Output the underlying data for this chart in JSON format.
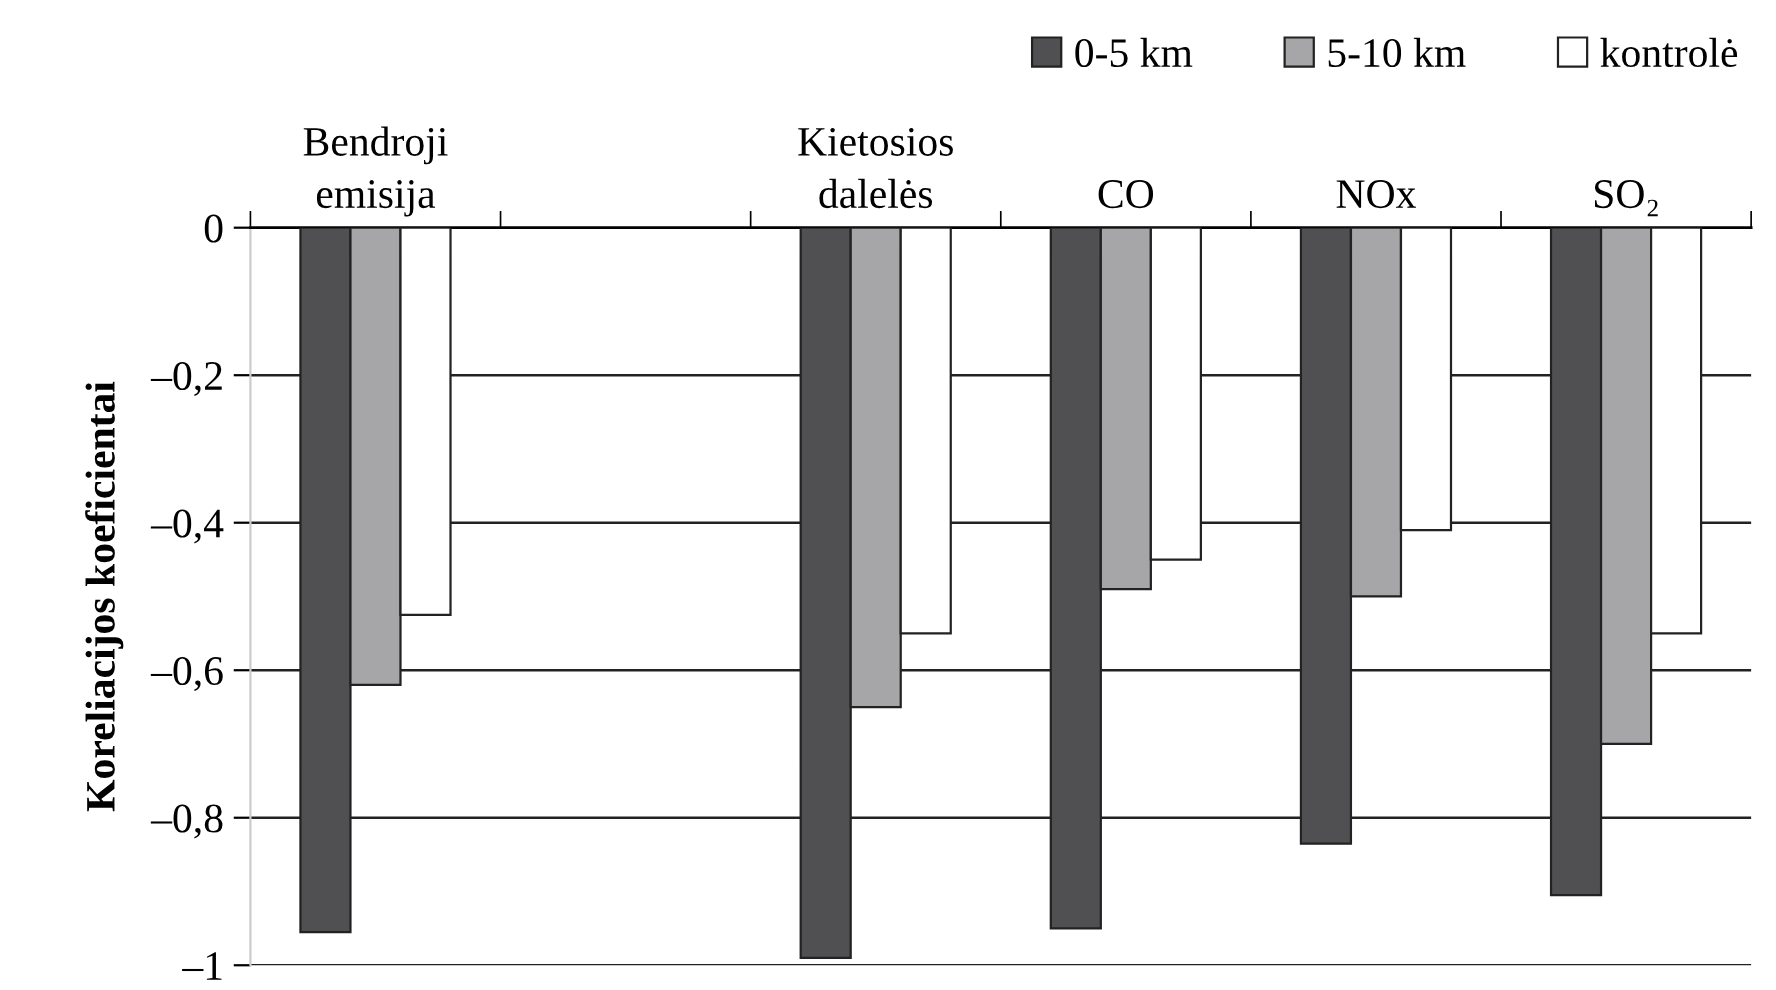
{
  "chart_data": {
    "type": "bar",
    "ylabel": "Koreliacijos koeficientai",
    "categories": [
      "Bendroji\nemisija",
      null,
      "Kietosios\ndalelės",
      "CO",
      "NOx",
      "SO₂"
    ],
    "series": [
      {
        "name": "0-5 km",
        "color": "#505052",
        "values": [
          -0.955,
          null,
          -0.99,
          -0.95,
          -0.835,
          -0.905
        ]
      },
      {
        "name": "5-10 km",
        "color": "#a6a6a8",
        "values": [
          -0.62,
          null,
          -0.65,
          -0.49,
          -0.5,
          -0.7
        ]
      },
      {
        "name": "kontrolė",
        "color": "#ffffff",
        "values": [
          -0.525,
          null,
          -0.55,
          -0.45,
          -0.41,
          -0.55
        ]
      }
    ],
    "ylim": [
      -1,
      0
    ],
    "yticks": [
      {
        "value": 0,
        "label": "0"
      },
      {
        "value": -0.2,
        "label": "–0,2"
      },
      {
        "value": -0.4,
        "label": "–0,4"
      },
      {
        "value": -0.6,
        "label": "–0,6"
      },
      {
        "value": -0.8,
        "label": "–0,8"
      },
      {
        "value": -1,
        "label": "–1"
      }
    ],
    "grid": "y",
    "legend": "top right"
  }
}
